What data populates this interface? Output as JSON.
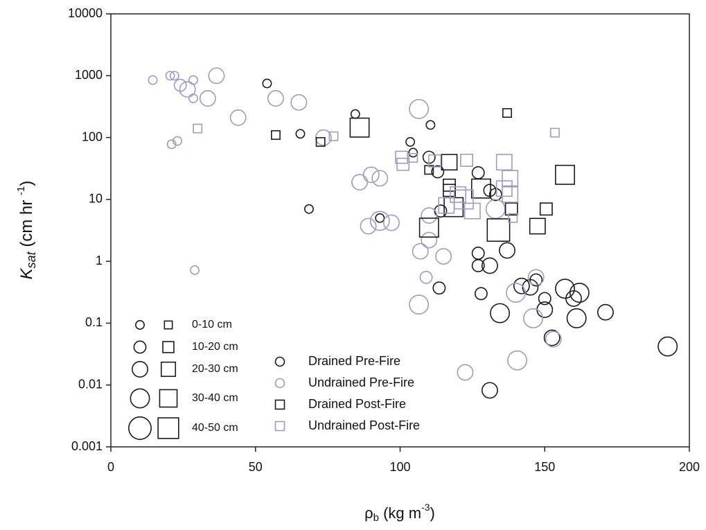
{
  "chart_data": {
    "type": "scatter",
    "x_label": [
      "ρ",
      "b",
      " (kg m",
      "-3",
      ")"
    ],
    "y_label": [
      "K",
      "sat",
      " (cm hr ",
      "-1",
      ")"
    ],
    "xlim": [
      0,
      200
    ],
    "xticks": [
      0,
      50,
      100,
      150,
      200
    ],
    "ylim": [
      0.001,
      10000
    ],
    "yticks": [
      0.001,
      0.01,
      0.1,
      1,
      10,
      100,
      1000,
      10000
    ],
    "log_y": true,
    "size_legend": [
      {
        "value": 5,
        "label": "0-10 cm"
      },
      {
        "value": 15,
        "label": "10-20 cm"
      },
      {
        "value": 25,
        "label": "20-30 cm"
      },
      {
        "value": 35,
        "label": "30-40 cm"
      },
      {
        "value": 45,
        "label": "40-50 cm"
      }
    ],
    "series": [
      {
        "name": "Drained Pre-Fire",
        "color": "#1a1a1a",
        "marker": "circle",
        "x": [
          54,
          84.5,
          65.5,
          103.5,
          110.5,
          104.5,
          68.5,
          93,
          110,
          113,
          114,
          113.5,
          127,
          131,
          133,
          127,
          127,
          131,
          128,
          137,
          142,
          145,
          147,
          134.5,
          150,
          150,
          157,
          160,
          162,
          161,
          171,
          152.5,
          192.5,
          131
        ],
        "values": [
          750,
          240,
          115,
          85,
          160,
          57,
          7,
          5,
          48,
          28,
          6.5,
          0.37,
          27,
          14,
          12,
          1.35,
          0.85,
          0.85,
          0.3,
          1.5,
          0.4,
          0.38,
          0.5,
          0.145,
          0.25,
          0.165,
          0.36,
          0.25,
          0.31,
          0.12,
          0.15,
          0.058,
          0.042,
          0.0082
        ],
        "sizes": [
          5,
          5,
          5,
          5,
          5,
          5,
          5,
          5,
          15,
          15,
          15,
          15,
          15,
          15,
          15,
          15,
          15,
          25,
          15,
          25,
          25,
          25,
          15,
          35,
          15,
          25,
          35,
          25,
          35,
          35,
          25,
          25,
          35,
          25
        ]
      },
      {
        "name": "Undrained Pre-Fire",
        "color": "#9b9bc4",
        "marker": "circle",
        "x": [
          14.5,
          20.5,
          22,
          28.5,
          24,
          26.5,
          36.5,
          28.5,
          33.5,
          57,
          65,
          44,
          21,
          23,
          29,
          106.5,
          73.5,
          86,
          90,
          93,
          89,
          93,
          97,
          107,
          109,
          110,
          110,
          115,
          106.5,
          122.5,
          140,
          146,
          147,
          153,
          140.5,
          133
        ],
        "values": [
          850,
          1000,
          1000,
          850,
          700,
          600,
          1000,
          430,
          430,
          430,
          370,
          210,
          78,
          88,
          0.72,
          290,
          100,
          19,
          25,
          22,
          3.7,
          4.5,
          4.2,
          1.45,
          0.55,
          2.2,
          5.5,
          1.2,
          0.2,
          0.016,
          0.31,
          0.12,
          0.55,
          0.055,
          0.025,
          7
        ],
        "sizes": [
          5,
          5,
          5,
          5,
          15,
          25,
          25,
          5,
          25,
          25,
          25,
          25,
          5,
          5,
          5,
          35,
          25,
          25,
          25,
          25,
          25,
          35,
          25,
          25,
          15,
          25,
          25,
          25,
          35,
          25,
          35,
          35,
          25,
          25,
          35,
          35
        ]
      },
      {
        "name": "Drained Post-Fire",
        "color": "#1a1a1a",
        "marker": "square",
        "x": [
          57,
          72.5,
          86,
          137,
          110,
          117,
          117,
          117,
          118.5,
          110,
          128,
          134,
          138.5,
          147.5,
          150.5,
          157
        ],
        "values": [
          110,
          85,
          145,
          250,
          30,
          40,
          17,
          14,
          7.5,
          3.5,
          15,
          3.2,
          7,
          3.7,
          7,
          25
        ],
        "sizes": [
          5,
          5,
          35,
          5,
          5,
          25,
          15,
          15,
          35,
          35,
          35,
          45,
          15,
          25,
          15,
          35
        ]
      },
      {
        "name": "Undrained Post-Fire",
        "color": "#9b9bc4",
        "marker": "square",
        "x": [
          30,
          77,
          153.5,
          100.5,
          101,
          104.5,
          112,
          123,
          120,
          125,
          122,
          136,
          138,
          136,
          138,
          139,
          116
        ],
        "values": [
          140,
          105,
          120,
          48,
          37,
          47,
          42,
          43,
          12,
          6.5,
          10,
          40,
          22,
          15,
          12,
          5,
          8
        ],
        "sizes": [
          5,
          5,
          5,
          15,
          15,
          5,
          15,
          15,
          25,
          25,
          35,
          25,
          25,
          25,
          25,
          5,
          25
        ]
      }
    ]
  }
}
